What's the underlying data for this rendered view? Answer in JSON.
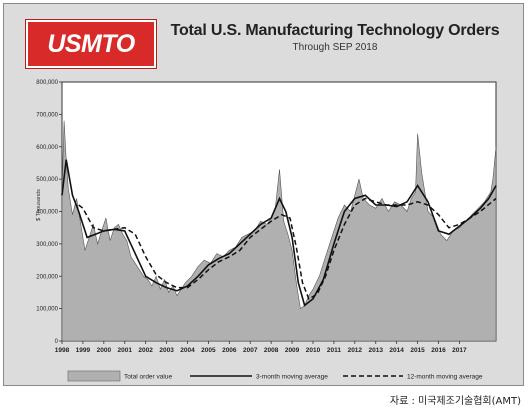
{
  "header": {
    "logo_text": "USMTO",
    "title": "Total U.S. Manufacturing Technology Orders",
    "subtitle": "Through SEP 2018"
  },
  "caption": "자료 : 미국제조기술협회(AMT)",
  "colors": {
    "logo_red": "#d92a2a",
    "area_fill": "#b0b0b0",
    "plot_bg": "#ffffff",
    "frame_bg": "#dcdcdc",
    "line": "#111111"
  },
  "chart_data": {
    "type": "area",
    "ylabel": "$ Thousands",
    "ylim": [
      0,
      800000
    ],
    "xlim": [
      1998,
      2018.75
    ],
    "y_ticks": [
      0,
      100000,
      200000,
      300000,
      400000,
      500000,
      600000,
      700000,
      800000
    ],
    "y_tick_labels": [
      "0",
      "100,000",
      "200,000",
      "300,000",
      "400,000",
      "500,000",
      "600,000",
      "700,000",
      "800,000"
    ],
    "x_ticks": [
      "1998",
      "1999",
      "2000",
      "2001",
      "2002",
      "2003",
      "2004",
      "2005",
      "2006",
      "2007",
      "2008",
      "2009",
      "2010",
      "2011",
      "2012",
      "2013",
      "2014",
      "2015",
      "2016",
      "2017"
    ],
    "grid": false,
    "legend_position": "bottom",
    "legend": [
      "Total order value",
      "3-month moving average",
      "12-month moving average"
    ],
    "series": [
      {
        "name": "Total order value",
        "x": [
          1998.0,
          1998.1,
          1998.2,
          1998.3,
          1998.5,
          1998.7,
          1998.9,
          1999.1,
          1999.3,
          1999.5,
          1999.7,
          1999.9,
          2000.1,
          2000.3,
          2000.5,
          2000.7,
          2000.9,
          2001.1,
          2001.3,
          2001.5,
          2001.7,
          2001.9,
          2002.1,
          2002.3,
          2002.5,
          2002.7,
          2002.9,
          2003.1,
          2003.3,
          2003.5,
          2003.7,
          2003.9,
          2004.2,
          2004.5,
          2004.8,
          2005.1,
          2005.4,
          2005.7,
          2006.0,
          2006.3,
          2006.6,
          2006.9,
          2007.2,
          2007.5,
          2007.8,
          2008.0,
          2008.2,
          2008.4,
          2008.6,
          2008.8,
          2009.0,
          2009.2,
          2009.4,
          2009.6,
          2009.8,
          2010.0,
          2010.3,
          2010.6,
          2010.9,
          2011.2,
          2011.5,
          2011.8,
          2012.0,
          2012.2,
          2012.4,
          2012.7,
          2013.0,
          2013.3,
          2013.6,
          2013.9,
          2014.2,
          2014.5,
          2014.7,
          2014.9,
          2015.0,
          2015.2,
          2015.5,
          2015.8,
          2016.1,
          2016.4,
          2016.7,
          2017.0,
          2017.3,
          2017.6,
          2017.9,
          2018.2,
          2018.5,
          2018.6,
          2018.75
        ],
        "values": [
          460000,
          680000,
          560000,
          470000,
          390000,
          440000,
          360000,
          280000,
          320000,
          360000,
          300000,
          340000,
          380000,
          310000,
          350000,
          360000,
          330000,
          310000,
          260000,
          240000,
          220000,
          200000,
          190000,
          170000,
          200000,
          160000,
          190000,
          150000,
          170000,
          140000,
          160000,
          180000,
          200000,
          230000,
          250000,
          240000,
          270000,
          260000,
          280000,
          290000,
          320000,
          330000,
          340000,
          370000,
          360000,
          380000,
          410000,
          530000,
          370000,
          330000,
          280000,
          180000,
          100000,
          110000,
          140000,
          160000,
          200000,
          260000,
          320000,
          380000,
          420000,
          400000,
          450000,
          500000,
          440000,
          420000,
          410000,
          440000,
          400000,
          430000,
          420000,
          400000,
          440000,
          460000,
          640000,
          520000,
          400000,
          380000,
          330000,
          310000,
          340000,
          350000,
          370000,
          390000,
          410000,
          430000,
          460000,
          500000,
          600000
        ]
      },
      {
        "name": "3-month moving average",
        "x": [
          1998.0,
          1998.2,
          1998.5,
          1998.8,
          1999.2,
          1999.6,
          2000.0,
          2000.5,
          2001.0,
          2001.5,
          2002.0,
          2002.5,
          2003.0,
          2003.5,
          2004.0,
          2004.5,
          2005.0,
          2005.5,
          2006.0,
          2006.5,
          2007.0,
          2007.5,
          2008.0,
          2008.4,
          2008.7,
          2009.0,
          2009.3,
          2009.6,
          2010.0,
          2010.5,
          2011.0,
          2011.5,
          2012.0,
          2012.5,
          2013.0,
          2013.5,
          2014.0,
          2014.5,
          2015.0,
          2015.5,
          2016.0,
          2016.5,
          2017.0,
          2017.5,
          2018.0,
          2018.4,
          2018.75
        ],
        "values": [
          450000,
          560000,
          450000,
          400000,
          320000,
          330000,
          340000,
          345000,
          340000,
          270000,
          200000,
          180000,
          165000,
          155000,
          170000,
          200000,
          235000,
          255000,
          270000,
          300000,
          330000,
          360000,
          380000,
          440000,
          400000,
          320000,
          180000,
          110000,
          130000,
          190000,
          300000,
          400000,
          440000,
          450000,
          420000,
          420000,
          415000,
          430000,
          480000,
          430000,
          340000,
          330000,
          355000,
          380000,
          410000,
          440000,
          480000
        ]
      },
      {
        "name": "12-month moving average",
        "x": [
          1998.8,
          1999.0,
          1999.5,
          2000.0,
          2000.5,
          2001.0,
          2001.5,
          2002.0,
          2002.5,
          2003.0,
          2003.5,
          2004.0,
          2004.5,
          2005.0,
          2005.5,
          2006.0,
          2006.5,
          2007.0,
          2007.5,
          2008.0,
          2008.5,
          2008.9,
          2009.2,
          2009.5,
          2009.8,
          2010.2,
          2010.6,
          2011.0,
          2011.5,
          2012.0,
          2012.5,
          2013.0,
          2013.5,
          2014.0,
          2014.5,
          2015.0,
          2015.5,
          2016.0,
          2016.5,
          2017.0,
          2017.5,
          2018.0,
          2018.75
        ],
        "values": [
          420000,
          410000,
          350000,
          340000,
          345000,
          350000,
          330000,
          260000,
          205000,
          180000,
          165000,
          165000,
          190000,
          220000,
          245000,
          260000,
          280000,
          320000,
          345000,
          370000,
          390000,
          380000,
          290000,
          180000,
          130000,
          145000,
          200000,
          280000,
          360000,
          420000,
          440000,
          430000,
          420000,
          420000,
          420000,
          430000,
          420000,
          390000,
          350000,
          360000,
          380000,
          400000,
          440000
        ]
      }
    ]
  }
}
